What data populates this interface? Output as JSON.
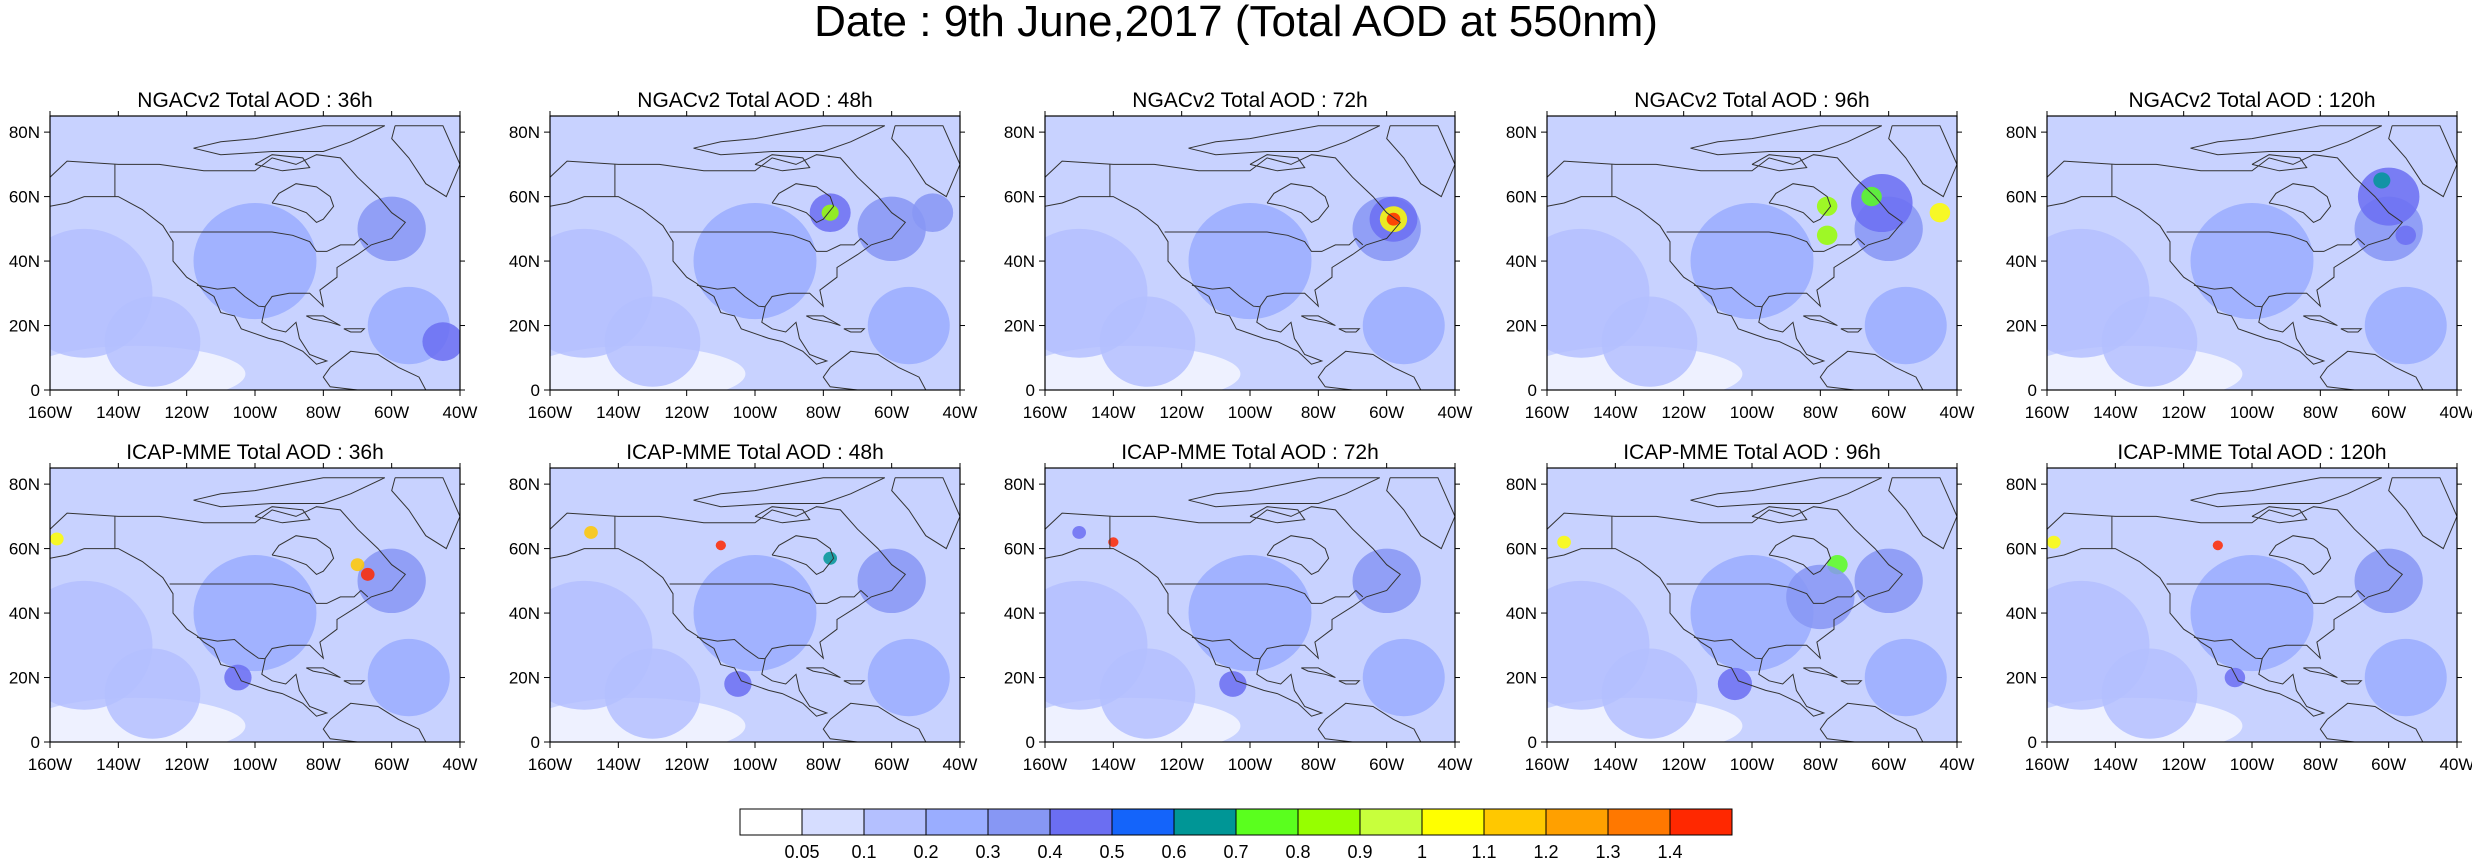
{
  "title": "Date : 9th June,2017 (Total AOD at 550nm)",
  "panels": [
    {
      "title": "NGACv2 Total AOD : 36h"
    },
    {
      "title": "NGACv2 Total AOD : 48h"
    },
    {
      "title": "NGACv2 Total AOD : 72h"
    },
    {
      "title": "NGACv2 Total AOD : 96h"
    },
    {
      "title": "NGACv2 Total AOD : 120h"
    },
    {
      "title": "ICAP-MME Total AOD : 36h"
    },
    {
      "title": "ICAP-MME Total AOD : 48h"
    },
    {
      "title": "ICAP-MME Total AOD : 72h"
    },
    {
      "title": "ICAP-MME Total AOD : 96h"
    },
    {
      "title": "ICAP-MME Total AOD : 120h"
    }
  ],
  "axes": {
    "x_ticks": [
      "160W",
      "140W",
      "120W",
      "100W",
      "80W",
      "60W",
      "40W"
    ],
    "y_ticks": [
      "80N",
      "60N",
      "40N",
      "20N",
      "0"
    ]
  },
  "colorbar": {
    "labels": [
      "0.05",
      "0.1",
      "0.2",
      "0.3",
      "0.4",
      "0.5",
      "0.6",
      "0.7",
      "0.8",
      "0.9",
      "1",
      "1.1",
      "1.2",
      "1.3",
      "1.4"
    ],
    "colors": [
      "#ffffff",
      "#d6ddff",
      "#b4c0ff",
      "#9aadff",
      "#8797f4",
      "#6b6ef2",
      "#1464fa",
      "#009696",
      "#5aff1e",
      "#96ff00",
      "#c8ff3c",
      "#ffff00",
      "#ffc800",
      "#ffa000",
      "#ff7800",
      "#ff2800"
    ]
  }
}
